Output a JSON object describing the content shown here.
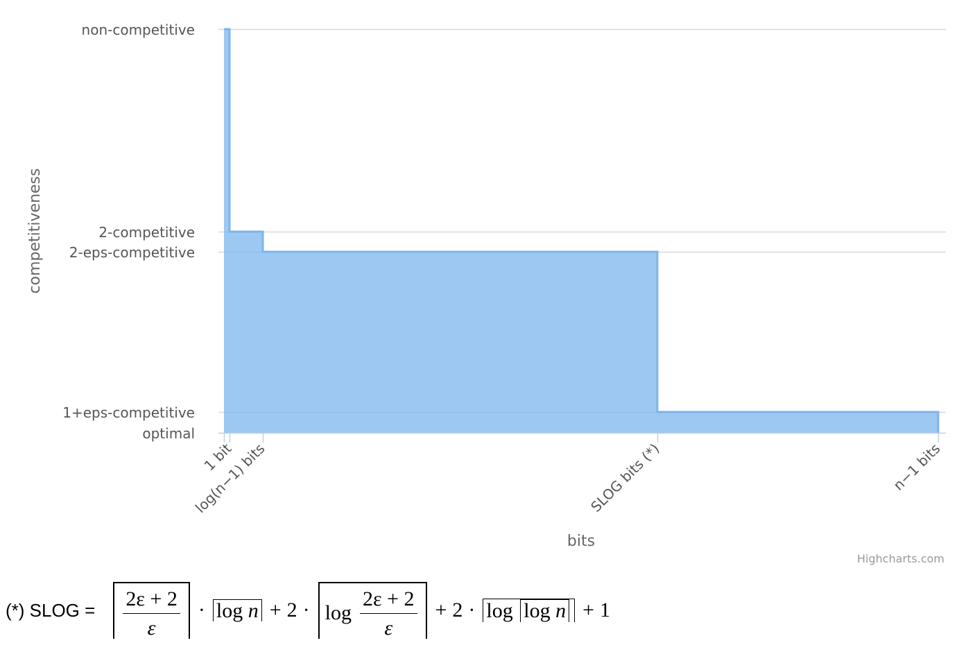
{
  "chart_data": {
    "type": "area",
    "step": true,
    "title": "",
    "xlabel": "bits",
    "ylabel": "competitiveness",
    "y_levels": {
      "optimal": 0,
      "1+eps-competitive": 0.1,
      "2-eps-competitive": 0.9,
      "2-competitive": 1.0,
      "non-competitive": 2.0
    },
    "y_ticks": [
      {
        "label": "optimal",
        "value": 0
      },
      {
        "label": "1+eps-competitive",
        "value": 0.1
      },
      {
        "label": "2-eps-competitive",
        "value": 0.9
      },
      {
        "label": "2-competitive",
        "value": 1.0
      },
      {
        "label": "non-competitive",
        "value": 2.0
      }
    ],
    "x_ticks": [
      {
        "label": "1 bit",
        "value": 0
      },
      {
        "label": "log(n−1) bits",
        "value": 0.7
      },
      {
        "label": "SLOG bits (*)",
        "value": 6.2
      },
      {
        "label": "n−1 bits",
        "value": 10.2
      }
    ],
    "xlim": [
      -0.1,
      10.2
    ],
    "ylim": [
      0,
      2.0
    ],
    "grid": true,
    "legend": "none",
    "series_color": "#7cb5ec",
    "points": [
      {
        "x": -0.1,
        "y": 2.0
      },
      {
        "x": 0.0,
        "y": 2.0
      },
      {
        "x": 0.0,
        "y": 1.0
      },
      {
        "x": 0.5,
        "y": 1.0
      },
      {
        "x": 0.5,
        "y": 0.9
      },
      {
        "x": 6.2,
        "y": 0.9
      },
      {
        "x": 6.2,
        "y": 0.1
      },
      {
        "x": 10.2,
        "y": 0.1
      }
    ]
  },
  "credit": "Highcharts.com",
  "footnote": {
    "prefix": "(*) SLOG =",
    "frac_num": "2ε + 2",
    "frac_den": "ε",
    "dot": "·",
    "log": "log",
    "n": "n",
    "plus": "+",
    "two": "2",
    "one": "1"
  }
}
